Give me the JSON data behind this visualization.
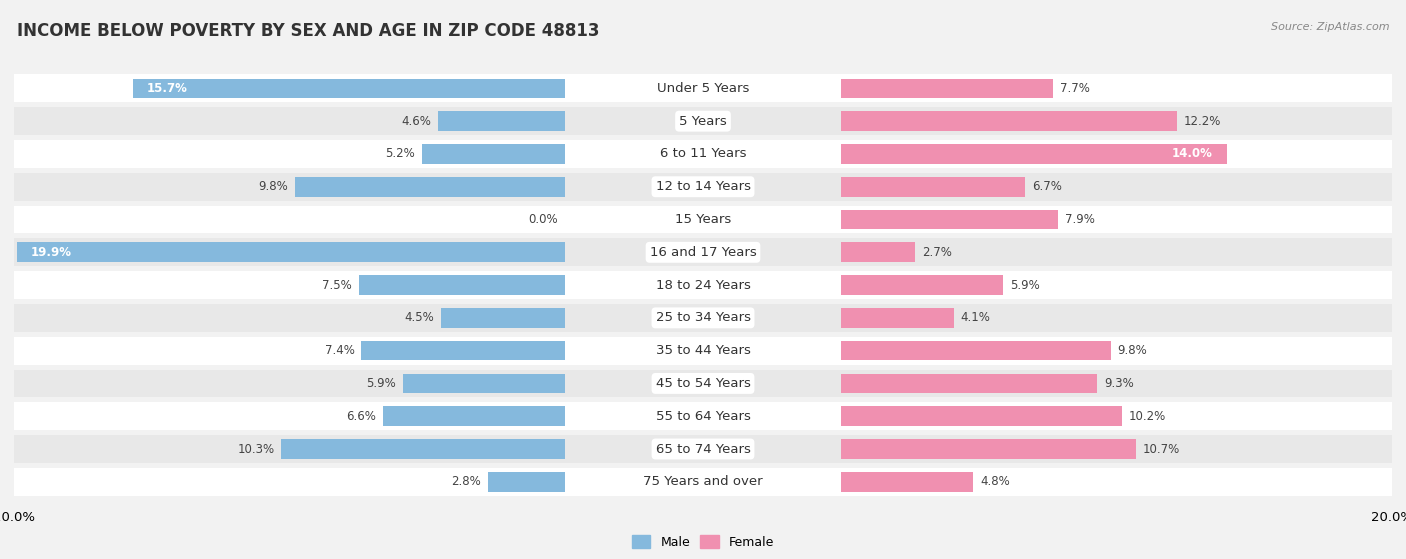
{
  "title": "INCOME BELOW POVERTY BY SEX AND AGE IN ZIP CODE 48813",
  "source": "Source: ZipAtlas.com",
  "categories": [
    "Under 5 Years",
    "5 Years",
    "6 to 11 Years",
    "12 to 14 Years",
    "15 Years",
    "16 and 17 Years",
    "18 to 24 Years",
    "25 to 34 Years",
    "35 to 44 Years",
    "45 to 54 Years",
    "55 to 64 Years",
    "65 to 74 Years",
    "75 Years and over"
  ],
  "male": [
    15.7,
    4.6,
    5.2,
    9.8,
    0.0,
    19.9,
    7.5,
    4.5,
    7.4,
    5.9,
    6.6,
    10.3,
    2.8
  ],
  "female": [
    7.7,
    12.2,
    14.0,
    6.7,
    7.9,
    2.7,
    5.9,
    4.1,
    9.8,
    9.3,
    10.2,
    10.7,
    4.8
  ],
  "male_color": "#85b9dd",
  "female_color": "#f090b0",
  "male_label": "Male",
  "female_label": "Female",
  "axis_max": 20.0,
  "background_color": "#f2f2f2",
  "row_color_even": "#ffffff",
  "row_color_odd": "#e8e8e8",
  "title_fontsize": 12,
  "label_fontsize": 9.5,
  "value_fontsize": 8.5,
  "source_fontsize": 8,
  "legend_fontsize": 9
}
